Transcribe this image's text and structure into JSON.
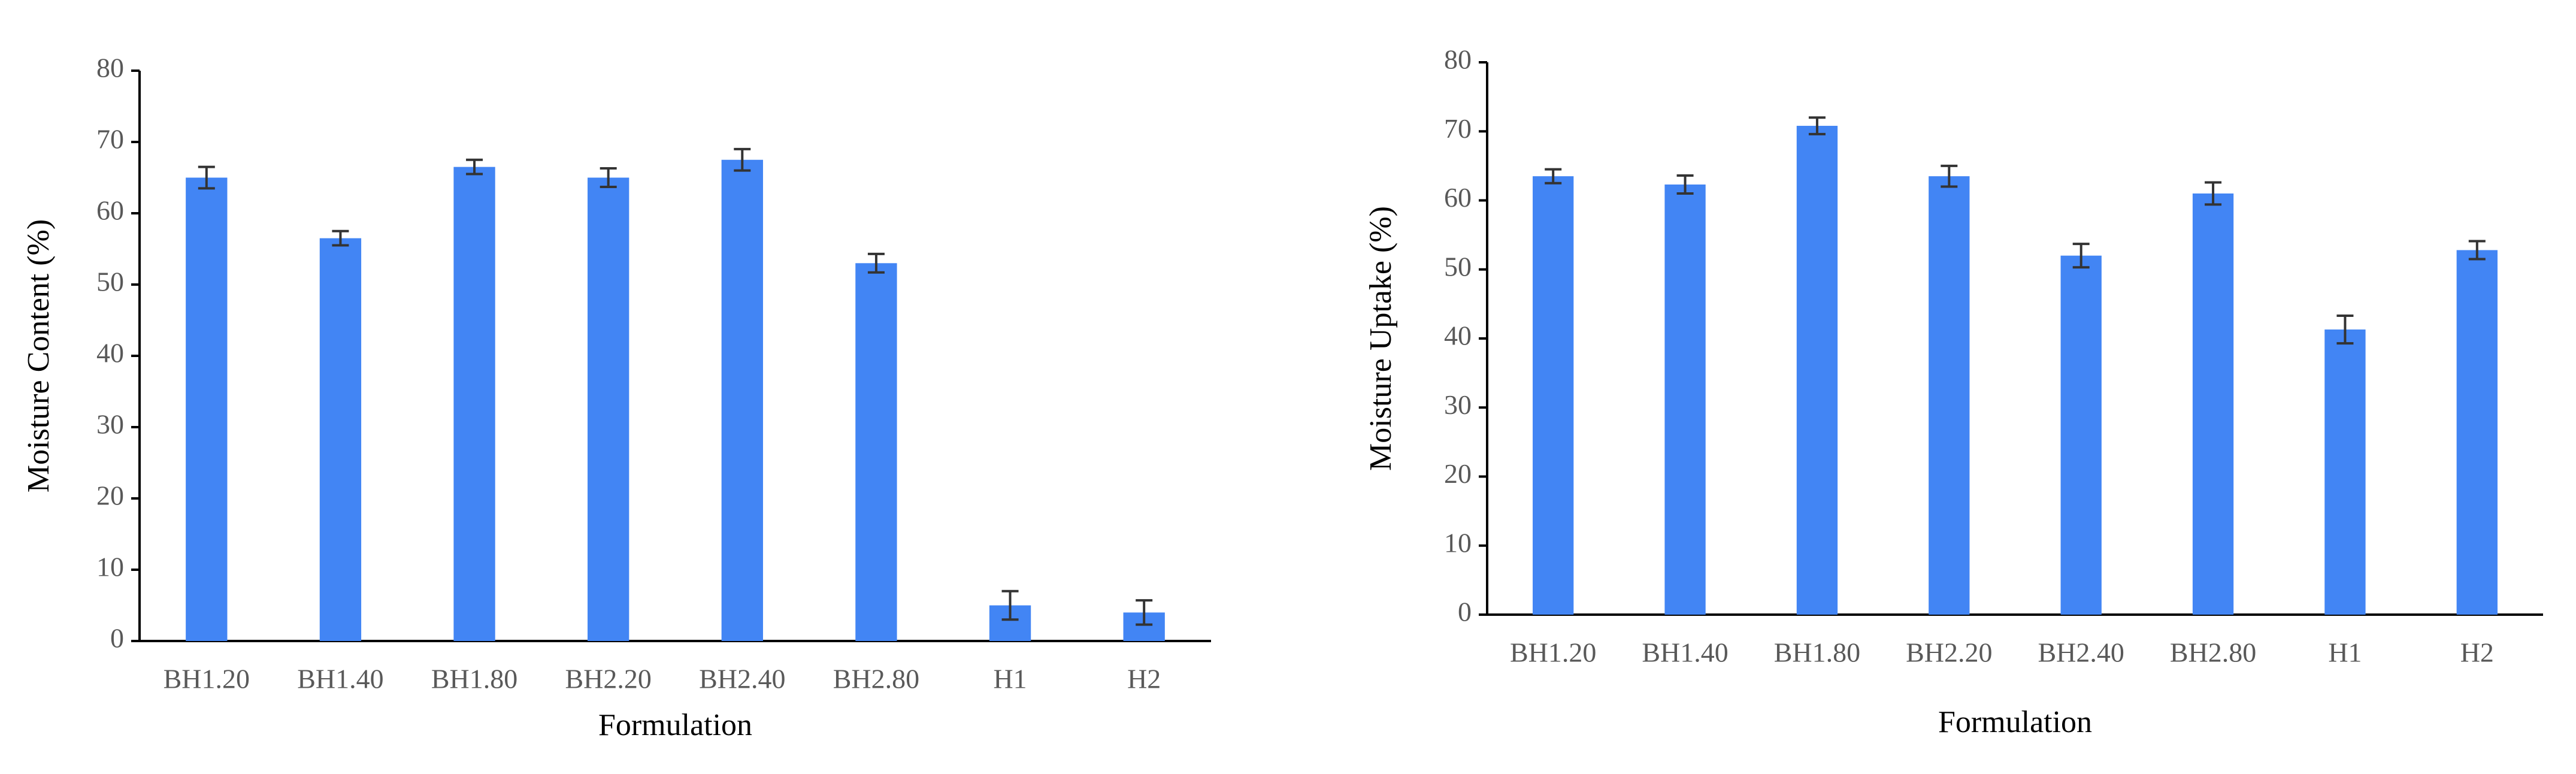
{
  "chart_data": [
    {
      "type": "bar",
      "xlabel": "Formulation",
      "ylabel": "Moisture Content (%)",
      "categories": [
        "BH1.20",
        "BH1.40",
        "BH1.80",
        "BH2.20",
        "BH2.40",
        "BH2.80",
        "H1",
        "H2"
      ],
      "values": [
        65,
        56.5,
        66.5,
        65,
        67.5,
        53,
        5,
        4
      ],
      "errors": [
        1.5,
        1,
        1,
        1.3,
        1.5,
        1.3,
        2,
        1.7
      ],
      "color": "#4285f4",
      "ylim": [
        0,
        80
      ],
      "yticks": [
        0,
        10,
        20,
        30,
        40,
        50,
        60,
        70,
        80
      ]
    },
    {
      "type": "bar",
      "xlabel": "Formulation",
      "ylabel": "Moisture Uptake (%)",
      "categories": [
        "BH1.20",
        "BH1.40",
        "BH1.80",
        "BH2.20",
        "BH2.40",
        "BH2.80",
        "H1",
        "H2"
      ],
      "values": [
        63.5,
        62.3,
        70.8,
        63.5,
        52,
        61,
        41.3,
        52.8
      ],
      "errors": [
        1,
        1.3,
        1.2,
        1.5,
        1.7,
        1.6,
        2,
        1.3
      ],
      "color": "#4285f4",
      "ylim": [
        0,
        80
      ],
      "yticks": [
        0,
        10,
        20,
        30,
        40,
        50,
        60,
        70,
        80
      ]
    }
  ]
}
